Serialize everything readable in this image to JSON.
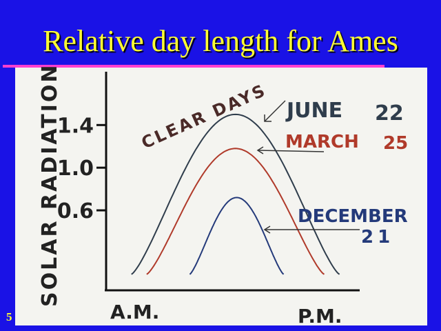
{
  "slide": {
    "title": "Relative day length for Ames",
    "number": "5"
  },
  "colors": {
    "background": "#1a12e6",
    "title": "#ffff33",
    "rule": "#ff3fd0",
    "panel": "#f4f4f0",
    "june": "#2f3d4c",
    "march": "#b03a2a",
    "december": "#243a7a"
  },
  "chart_data": {
    "type": "line",
    "title": "",
    "annotation": "CLEAR DAYS",
    "ylabel": "SOLAR RADIATION",
    "xlabel": "",
    "x_tick_labels": [
      "A.M.",
      "P.M."
    ],
    "y_ticks": [
      {
        "value": 0.6,
        "label": "0.6"
      },
      {
        "value": 1.0,
        "label": "1.0"
      },
      {
        "value": 1.4,
        "label": "1.4"
      }
    ],
    "ylim": [
      -0.15,
      1.9
    ],
    "grid": false,
    "series": [
      {
        "name_lines": [
          "JUNE",
          "22"
        ],
        "key": "june",
        "peak": 1.5,
        "start": 0.1,
        "end": 0.92
      },
      {
        "name_lines": [
          "MARCH",
          "25"
        ],
        "key": "march",
        "peak": 1.18,
        "start": 0.16,
        "end": 0.86
      },
      {
        "name_lines": [
          "DECEMBER",
          "21"
        ],
        "key": "december",
        "peak": 0.72,
        "start": 0.33,
        "end": 0.7
      }
    ]
  }
}
